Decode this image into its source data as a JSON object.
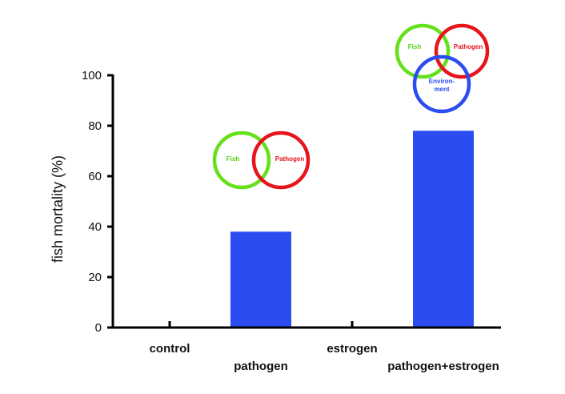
{
  "chart_data": {
    "type": "bar",
    "ylabel": "fish mortality (%)",
    "xlabel": "",
    "ylim": [
      0,
      100
    ],
    "yticks": [
      0,
      20,
      40,
      60,
      80,
      100
    ],
    "categories": [
      "control",
      "pathogen",
      "estrogen",
      "pathogen+estrogen"
    ],
    "values": [
      0,
      38,
      0,
      78
    ],
    "bar_color": "#2b4cf0",
    "grid": false
  },
  "venn_diagrams": [
    {
      "category": "pathogen",
      "sets": [
        {
          "label": "Fish",
          "color": "#66e01a",
          "text_color": "#55d010"
        },
        {
          "label": "Pathogen",
          "color": "#e8141c",
          "text_color": "#e8141c"
        }
      ]
    },
    {
      "category": "pathogen+estrogen",
      "sets": [
        {
          "label": "Fish",
          "color": "#66e01a",
          "text_color": "#55d010"
        },
        {
          "label": "Pathogen",
          "color": "#e8141c",
          "text_color": "#e8141c"
        },
        {
          "label": "Environ-\nment",
          "color": "#2b4cf0",
          "text_color": "#2b4cf0"
        }
      ]
    }
  ]
}
